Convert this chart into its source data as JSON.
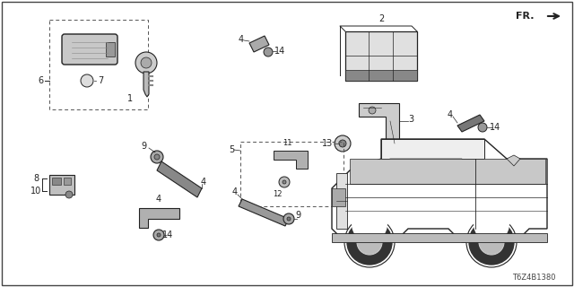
{
  "bg_color": "#ffffff",
  "line_color": "#222222",
  "dark_color": "#333333",
  "fig_width": 6.4,
  "fig_height": 3.2,
  "diagram_id": "T6Z4B1380",
  "border_color": "#555555"
}
